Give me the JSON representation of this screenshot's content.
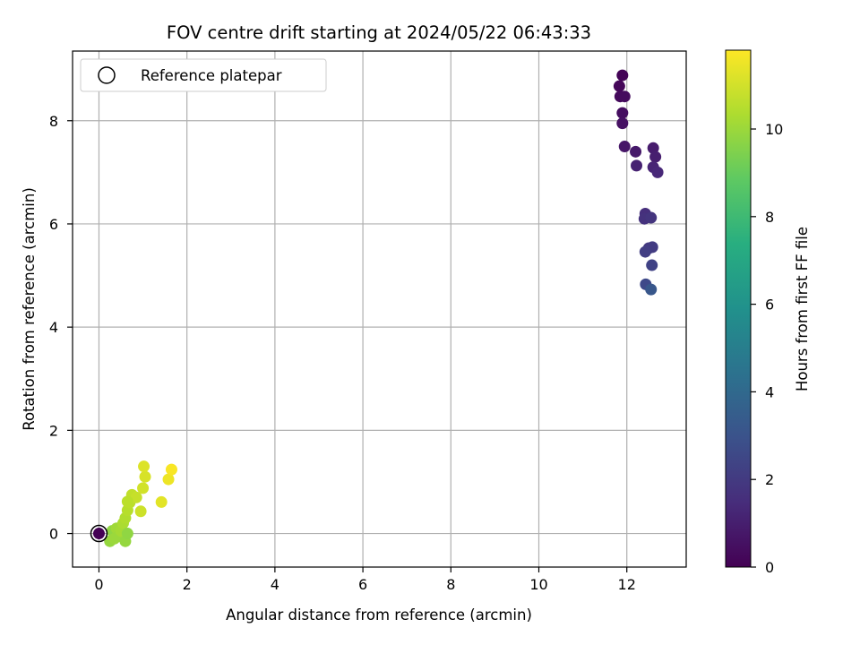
{
  "chart_data": {
    "type": "scatter",
    "title": "FOV centre drift starting at 2024/05/22 06:43:33",
    "xlabel": "Angular distance from reference (arcmin)",
    "ylabel": "Rotation from reference (arcmin)",
    "xlim": [
      -0.6,
      13.35
    ],
    "ylim": [
      -0.65,
      9.35
    ],
    "xticks": [
      0,
      2,
      4,
      6,
      8,
      10,
      12
    ],
    "yticks": [
      0,
      2,
      4,
      6,
      8
    ],
    "xtick_labels": [
      "0",
      "2",
      "4",
      "6",
      "8",
      "10",
      "12"
    ],
    "ytick_labels": [
      "0",
      "2",
      "4",
      "6",
      "8"
    ],
    "grid": true,
    "legend": {
      "placement": "top-left",
      "entries": [
        "Reference platepar"
      ]
    },
    "colorbar": {
      "label": "Hours from first FF file",
      "range": [
        0,
        11.8
      ],
      "ticks": [
        0,
        2,
        4,
        6,
        8,
        10
      ],
      "tick_labels": [
        "0",
        "2",
        "4",
        "6",
        "8",
        "10"
      ],
      "colormap": "viridis"
    },
    "reference_point": {
      "x": 0,
      "y": 0,
      "label": "Reference platepar"
    },
    "points": [
      {
        "x": 0.0,
        "y": 0.0,
        "c": 0.0
      },
      {
        "x": 11.9,
        "y": 8.88,
        "c": 0.1
      },
      {
        "x": 11.83,
        "y": 8.67,
        "c": 0.2
      },
      {
        "x": 11.85,
        "y": 8.47,
        "c": 0.3
      },
      {
        "x": 11.95,
        "y": 8.47,
        "c": 0.35
      },
      {
        "x": 11.9,
        "y": 8.15,
        "c": 0.45
      },
      {
        "x": 11.9,
        "y": 7.95,
        "c": 0.55
      },
      {
        "x": 11.95,
        "y": 7.5,
        "c": 0.7
      },
      {
        "x": 12.2,
        "y": 7.4,
        "c": 0.8
      },
      {
        "x": 12.6,
        "y": 7.47,
        "c": 0.9
      },
      {
        "x": 12.65,
        "y": 7.3,
        "c": 1.0
      },
      {
        "x": 12.22,
        "y": 7.13,
        "c": 1.1
      },
      {
        "x": 12.6,
        "y": 7.1,
        "c": 1.2
      },
      {
        "x": 12.7,
        "y": 7.0,
        "c": 1.3
      },
      {
        "x": 12.42,
        "y": 6.2,
        "c": 1.6
      },
      {
        "x": 12.4,
        "y": 6.1,
        "c": 1.7
      },
      {
        "x": 12.55,
        "y": 6.12,
        "c": 1.8
      },
      {
        "x": 12.5,
        "y": 5.53,
        "c": 1.95
      },
      {
        "x": 12.58,
        "y": 5.55,
        "c": 2.05
      },
      {
        "x": 12.42,
        "y": 5.46,
        "c": 2.15
      },
      {
        "x": 12.57,
        "y": 5.2,
        "c": 2.3
      },
      {
        "x": 12.43,
        "y": 4.83,
        "c": 2.6
      },
      {
        "x": 12.55,
        "y": 4.73,
        "c": 3.2
      },
      {
        "x": 0.3,
        "y": 0.05,
        "c": 9.8
      },
      {
        "x": 0.25,
        "y": -0.15,
        "c": 9.9
      },
      {
        "x": 0.35,
        "y": -0.1,
        "c": 10.0
      },
      {
        "x": 0.4,
        "y": 0.1,
        "c": 10.1
      },
      {
        "x": 0.45,
        "y": -0.05,
        "c": 10.0
      },
      {
        "x": 0.5,
        "y": 0.05,
        "c": 10.2
      },
      {
        "x": 0.55,
        "y": 0.2,
        "c": 10.3
      },
      {
        "x": 0.6,
        "y": -0.15,
        "c": 9.9
      },
      {
        "x": 0.65,
        "y": 0.0,
        "c": 9.8
      },
      {
        "x": 0.6,
        "y": 0.3,
        "c": 10.4
      },
      {
        "x": 0.65,
        "y": 0.45,
        "c": 10.5
      },
      {
        "x": 0.7,
        "y": 0.6,
        "c": 10.6
      },
      {
        "x": 0.75,
        "y": 0.75,
        "c": 10.7
      },
      {
        "x": 0.85,
        "y": 0.7,
        "c": 10.8
      },
      {
        "x": 0.65,
        "y": 0.62,
        "c": 10.6
      },
      {
        "x": 0.95,
        "y": 0.43,
        "c": 10.9
      },
      {
        "x": 1.0,
        "y": 0.88,
        "c": 11.0
      },
      {
        "x": 1.05,
        "y": 1.1,
        "c": 11.1
      },
      {
        "x": 1.02,
        "y": 1.3,
        "c": 11.2
      },
      {
        "x": 1.42,
        "y": 0.61,
        "c": 11.3
      },
      {
        "x": 1.58,
        "y": 1.05,
        "c": 11.5
      },
      {
        "x": 1.65,
        "y": 1.24,
        "c": 11.7
      }
    ]
  }
}
